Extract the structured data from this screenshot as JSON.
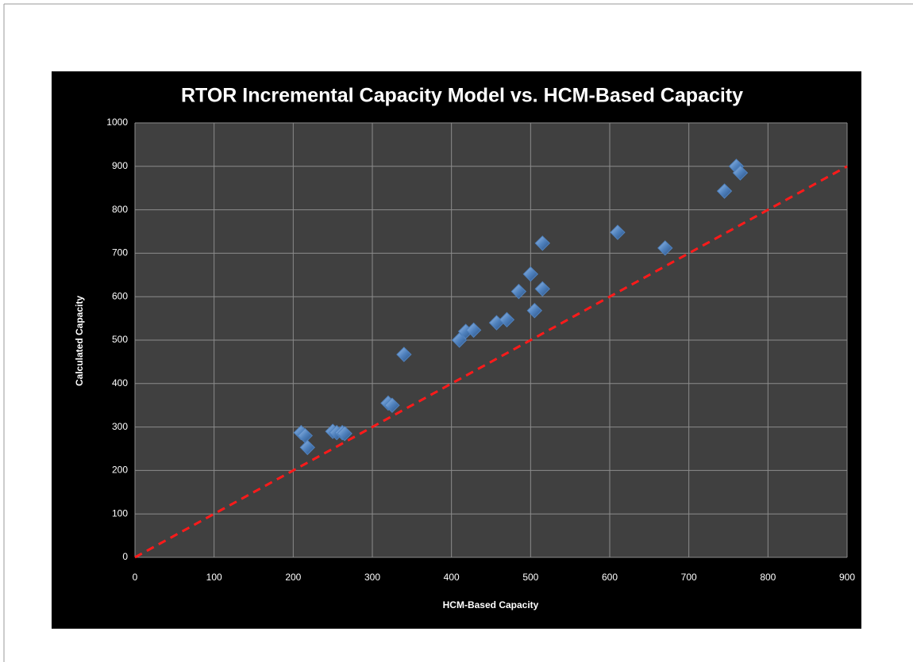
{
  "chart_data": {
    "type": "scatter",
    "title": "RTOR Incremental Capacity Model vs. HCM-Based Capacity",
    "x_label": "HCM-Based Capacity",
    "y_label": "Calculated Capacity",
    "x": [
      210,
      215,
      218,
      250,
      255,
      262,
      265,
      320,
      325,
      340,
      410,
      418,
      428,
      457,
      470,
      485,
      500,
      505,
      515,
      515,
      610,
      670,
      745,
      760,
      765
    ],
    "values": [
      287,
      280,
      253,
      290,
      287,
      287,
      285,
      355,
      350,
      467,
      500,
      520,
      523,
      540,
      547,
      612,
      652,
      568,
      618,
      723,
      748,
      712,
      843,
      900,
      885
    ],
    "color": "#4f81bd",
    "reference_line": {
      "x": [
        0,
        900
      ],
      "values": [
        0,
        900
      ],
      "color": "#ff1a1a"
    },
    "xlim": [
      0,
      900
    ],
    "xticks": [
      0,
      100,
      200,
      300,
      400,
      500,
      600,
      700,
      800,
      900
    ],
    "ylim": [
      0,
      1000
    ],
    "yticks": [
      0,
      100,
      200,
      300,
      400,
      500,
      600,
      700,
      800,
      900,
      1000
    ],
    "grid": true
  }
}
